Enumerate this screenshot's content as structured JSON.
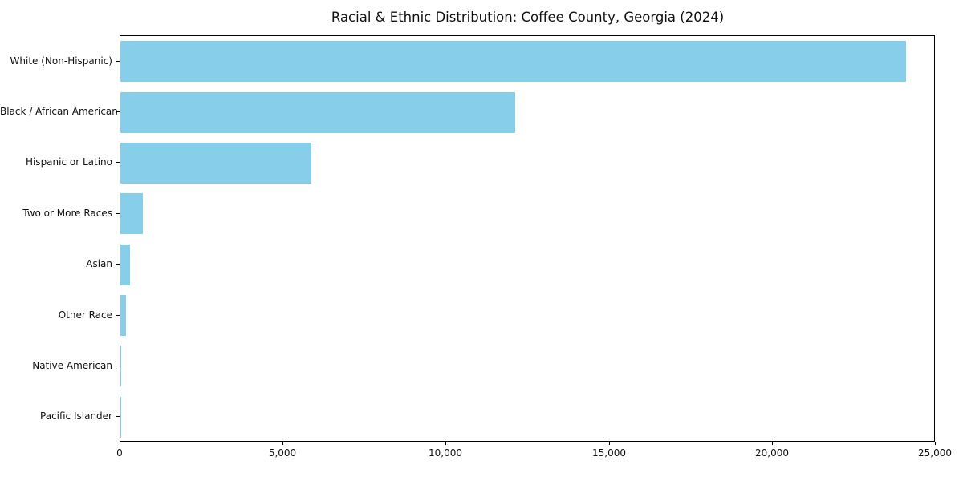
{
  "chart_data": {
    "type": "bar",
    "orientation": "horizontal",
    "title": "Racial & Ethnic Distribution: Coffee County, Georgia (2024)",
    "categories": [
      "White (Non-Hispanic)",
      "Black / African American",
      "Hispanic or Latino",
      "Two or More Races",
      "Asian",
      "Other Race",
      "Native American",
      "Pacific Islander"
    ],
    "values": [
      24100,
      12100,
      5850,
      700,
      300,
      160,
      30,
      10
    ],
    "xlabel": "",
    "ylabel": "",
    "xlim": [
      0,
      25000
    ],
    "x_ticks": [
      0,
      5000,
      10000,
      15000,
      20000,
      25000
    ],
    "x_tick_labels": [
      "0",
      "5,000",
      "10,000",
      "15,000",
      "20,000",
      "25,000"
    ],
    "bar_color": "#87CEEB",
    "grid": false,
    "legend_position": "none"
  }
}
